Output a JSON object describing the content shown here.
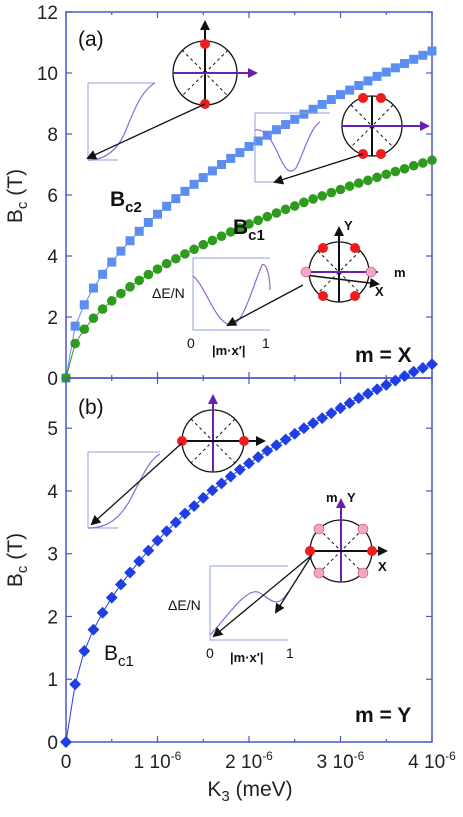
{
  "chart_data": [
    {
      "type": "scatter",
      "panel_label": "(a)",
      "ylabel": "B",
      "ylabel_sub": "c",
      "ylabel_unit": " (T)",
      "ylim": [
        0,
        12
      ],
      "xlim": [
        0,
        4e-06
      ],
      "yticks": [
        "0",
        "2",
        "4",
        "6",
        "8",
        "10",
        "12"
      ],
      "condition": "m = X",
      "series": [
        {
          "name": "B",
          "name_sub": "c2",
          "color": "#5b8ef0",
          "marker": "square",
          "x": [
            0,
            1e-07,
            2e-07,
            3e-07,
            4e-07,
            5e-07,
            6e-07,
            7e-07,
            8e-07,
            9e-07,
            1e-06,
            1.1e-06,
            1.2e-06,
            1.3e-06,
            1.4e-06,
            1.5e-06,
            1.6e-06,
            1.7e-06,
            1.8e-06,
            1.9e-06,
            2e-06,
            2.1e-06,
            2.2e-06,
            2.3e-06,
            2.4e-06,
            2.5e-06,
            2.6e-06,
            2.7e-06,
            2.8e-06,
            2.9e-06,
            3e-06,
            3.1e-06,
            3.2e-06,
            3.3e-06,
            3.4e-06,
            3.5e-06,
            3.6e-06,
            3.7e-06,
            3.8e-06,
            3.9e-06,
            4e-06
          ],
          "y": [
            0,
            1.7,
            2.4,
            2.95,
            3.4,
            3.8,
            4.16,
            4.5,
            4.81,
            5.1,
            5.37,
            5.63,
            5.88,
            6.12,
            6.35,
            6.57,
            6.79,
            7.0,
            7.2,
            7.39,
            7.59,
            7.77,
            7.96,
            8.14,
            8.31,
            8.48,
            8.65,
            8.81,
            8.97,
            9.13,
            9.29,
            9.44,
            9.59,
            9.74,
            9.89,
            10.03,
            10.17,
            10.31,
            10.45,
            10.58,
            10.72
          ]
        },
        {
          "name": "B",
          "name_sub": "c1",
          "color": "#2e9a1e",
          "marker": "circle",
          "x": [
            0,
            1e-07,
            2e-07,
            3e-07,
            4e-07,
            5e-07,
            6e-07,
            7e-07,
            8e-07,
            9e-07,
            1e-06,
            1.1e-06,
            1.2e-06,
            1.3e-06,
            1.4e-06,
            1.5e-06,
            1.6e-06,
            1.7e-06,
            1.8e-06,
            1.9e-06,
            2e-06,
            2.1e-06,
            2.2e-06,
            2.3e-06,
            2.4e-06,
            2.5e-06,
            2.6e-06,
            2.7e-06,
            2.8e-06,
            2.9e-06,
            3e-06,
            3.1e-06,
            3.2e-06,
            3.3e-06,
            3.4e-06,
            3.5e-06,
            3.6e-06,
            3.7e-06,
            3.8e-06,
            3.9e-06,
            4e-06
          ],
          "y": [
            0,
            1.13,
            1.6,
            1.96,
            2.26,
            2.53,
            2.77,
            2.99,
            3.2,
            3.39,
            3.57,
            3.75,
            3.91,
            4.07,
            4.22,
            4.37,
            4.51,
            4.65,
            4.79,
            4.92,
            5.05,
            5.17,
            5.29,
            5.41,
            5.53,
            5.64,
            5.76,
            5.87,
            5.97,
            6.08,
            6.18,
            6.29,
            6.39,
            6.48,
            6.58,
            6.68,
            6.77,
            6.86,
            6.96,
            7.05,
            7.14
          ]
        }
      ],
      "inset": {
        "ylabel": "ΔE/N",
        "xticks": [
          "0",
          "1"
        ],
        "xlabel": "|m·x′|",
        "axis_labels": {
          "y": "Y",
          "m": "m",
          "x": "X"
        }
      }
    },
    {
      "type": "scatter",
      "panel_label": "(b)",
      "ylabel": "B",
      "ylabel_sub": "c",
      "ylabel_unit": " (T)",
      "ylim": [
        0,
        5.8
      ],
      "xlim": [
        0,
        4e-06
      ],
      "yticks": [
        "0",
        "1",
        "2",
        "3",
        "4",
        "5"
      ],
      "xlabel": "K",
      "xlabel_sub": "3",
      "xlabel_unit": " (meV)",
      "xticks": [
        "0",
        "1 10",
        "2 10",
        "3 10",
        "4 10"
      ],
      "xtick_exp": "-6",
      "condition": "m = Y",
      "series": [
        {
          "name": "B",
          "name_sub": "c1",
          "color": "#1f3fe6",
          "marker": "diamond",
          "x": [
            0,
            1e-07,
            2e-07,
            3e-07,
            4e-07,
            5e-07,
            6e-07,
            7e-07,
            8e-07,
            9e-07,
            1e-06,
            1.1e-06,
            1.2e-06,
            1.3e-06,
            1.4e-06,
            1.5e-06,
            1.6e-06,
            1.7e-06,
            1.8e-06,
            1.9e-06,
            2e-06,
            2.1e-06,
            2.2e-06,
            2.3e-06,
            2.4e-06,
            2.5e-06,
            2.6e-06,
            2.7e-06,
            2.8e-06,
            2.9e-06,
            3e-06,
            3.1e-06,
            3.2e-06,
            3.3e-06,
            3.4e-06,
            3.5e-06,
            3.6e-06,
            3.7e-06,
            3.8e-06,
            3.9e-06,
            4e-06
          ],
          "y": [
            0,
            0.92,
            1.45,
            1.79,
            2.06,
            2.3,
            2.51,
            2.7,
            2.88,
            3.05,
            3.21,
            3.36,
            3.5,
            3.64,
            3.76,
            3.89,
            4.01,
            4.12,
            4.23,
            4.34,
            4.44,
            4.54,
            4.64,
            4.73,
            4.82,
            4.91,
            5.0,
            5.08,
            5.16,
            5.24,
            5.32,
            5.4,
            5.48,
            5.55,
            5.62,
            5.69,
            5.76,
            5.83,
            5.9,
            5.96,
            6.02
          ]
        }
      ],
      "inset": {
        "ylabel": "ΔE/N",
        "xticks": [
          "0",
          "1"
        ],
        "xlabel": "|m·x′|",
        "axis_labels": {
          "m": "m",
          "y": "Y",
          "x": "X"
        }
      }
    }
  ],
  "colors": {
    "frame": "#4a58c8",
    "arrow": "#6a1fb3",
    "red_dot": "#ee1c1c",
    "pink_dot": "#f0a6c8",
    "inset_curve": "#8a6ad8"
  }
}
